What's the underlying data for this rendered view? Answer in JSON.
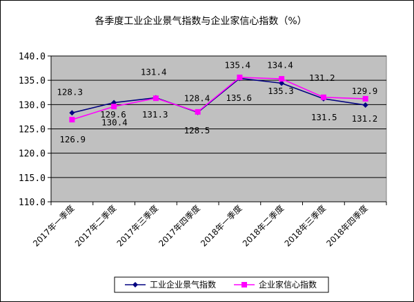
{
  "chart_data": {
    "type": "line",
    "title": "各季度工业企业景气指数与企业家信心指数（%）",
    "categories": [
      "2017年一季度",
      "2017年二季度",
      "2017年三季度",
      "2017年四季度",
      "2018年一季度",
      "2018年二季度",
      "2018年三季度",
      "2018年四季度"
    ],
    "series": [
      {
        "name": "工业企业景气指数",
        "values": [
          128.3,
          130.4,
          131.4,
          128.4,
          135.4,
          134.4,
          131.2,
          129.9
        ],
        "color": "#000080",
        "marker": "diamond"
      },
      {
        "name": "企业家信心指数",
        "values": [
          126.9,
          129.6,
          131.3,
          128.5,
          135.6,
          135.3,
          131.5,
          131.2
        ],
        "color": "#ff00ff",
        "marker": "square"
      }
    ],
    "ylim": [
      110,
      140
    ],
    "yticks": [
      "110.0",
      "115.0",
      "120.0",
      "125.0",
      "130.0",
      "135.0",
      "140.0"
    ],
    "grid": true,
    "plot_background": "#c0c0c0",
    "legend_position": "bottom"
  }
}
